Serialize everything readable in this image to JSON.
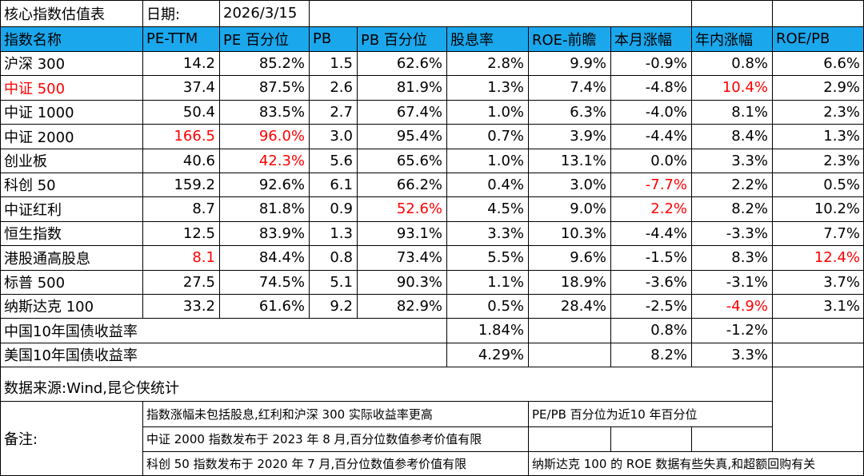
{
  "title": {
    "label": "核心指数估值表",
    "date_label": "日期:",
    "date_value": "2026/3/15"
  },
  "headers": [
    "指数名称",
    "PE-TTM",
    "PE 百分位",
    "PB",
    "PB 百分位",
    "股息率",
    "ROE-前瞻",
    "本月涨幅",
    "年内涨幅",
    "ROE/PB"
  ],
  "rows": [
    [
      "沪深 300",
      "14.2",
      "85.2%",
      "1.5",
      "62.6%",
      "2.8%",
      "9.9%",
      "-0.9%",
      "0.8%",
      "6.6%"
    ],
    [
      "中证 500",
      "37.4",
      "87.5%",
      "2.6",
      "81.9%",
      "1.3%",
      "7.4%",
      "-4.8%",
      "10.4%",
      "2.9%"
    ],
    [
      "中证 1000",
      "50.4",
      "83.5%",
      "2.7",
      "67.4%",
      "1.0%",
      "6.3%",
      "-4.0%",
      "8.1%",
      "2.3%"
    ],
    [
      "中证 2000",
      "166.5",
      "96.0%",
      "3.0",
      "95.4%",
      "0.7%",
      "3.9%",
      "-4.4%",
      "8.4%",
      "1.3%"
    ],
    [
      "创业板",
      "40.6",
      "42.3%",
      "5.6",
      "65.6%",
      "1.0%",
      "13.1%",
      "0.0%",
      "3.3%",
      "2.3%"
    ],
    [
      "科创 50",
      "159.2",
      "92.6%",
      "6.1",
      "66.2%",
      "0.4%",
      "3.0%",
      "-7.7%",
      "2.2%",
      "0.5%"
    ],
    [
      "中证红利",
      "8.7",
      "81.8%",
      "0.9",
      "52.6%",
      "4.5%",
      "9.0%",
      "2.2%",
      "8.2%",
      "10.2%"
    ],
    [
      "恒生指数",
      "12.5",
      "83.9%",
      "1.3",
      "93.1%",
      "3.3%",
      "10.3%",
      "-4.4%",
      "-3.3%",
      "7.7%"
    ],
    [
      "港股通高股息",
      "8.1",
      "84.4%",
      "0.8",
      "73.4%",
      "5.5%",
      "9.6%",
      "-1.5%",
      "8.3%",
      "12.4%"
    ],
    [
      "标普 500",
      "27.5",
      "74.5%",
      "5.1",
      "90.3%",
      "1.1%",
      "18.9%",
      "-3.6%",
      "-3.1%",
      "3.7%"
    ],
    [
      "纳斯达克 100",
      "33.2",
      "61.6%",
      "9.2",
      "82.9%",
      "0.5%",
      "28.4%",
      "-2.5%",
      "-4.9%",
      "3.1%"
    ]
  ],
  "highlights": [
    {
      "row": 1,
      "col": 0
    },
    {
      "row": 1,
      "col": 8
    },
    {
      "row": 3,
      "col": 1
    },
    {
      "row": 3,
      "col": 2
    },
    {
      "row": 4,
      "col": 2
    },
    {
      "row": 5,
      "col": 7
    },
    {
      "row": 6,
      "col": 4
    },
    {
      "row": 6,
      "col": 7
    },
    {
      "row": 8,
      "col": 1
    },
    {
      "row": 8,
      "col": 9
    },
    {
      "row": 10,
      "col": 8
    }
  ],
  "bonds": [
    {
      "label": "中国10年国债收益率",
      "yield": "1.84%",
      "month": "0.8%",
      "ytd": "-1.2%"
    },
    {
      "label": "美国10年国债收益率",
      "yield": "4.29%",
      "month": "8.2%",
      "ytd": "3.3%"
    }
  ],
  "source": "数据来源:Wind,昆仑侠统计",
  "notes": {
    "label": "备注:",
    "items": [
      "指数涨幅未包括股息,红利和沪深 300 实际收益率更高",
      "PE/PB 百分位为近10 年百分位",
      "中证 2000 指数发布于 2023 年 8 月,百分位数值参考价值有限",
      "科创 50 指数发布于 2020 年 7 月,百分位数值参考价值有限",
      "纳斯达克 100 的 ROE 数据有些失真,和超额回购有关"
    ]
  },
  "colors": {
    "header_bg": "#1aa7ec",
    "highlight_text": "#ff0000",
    "grid": "#000000"
  }
}
